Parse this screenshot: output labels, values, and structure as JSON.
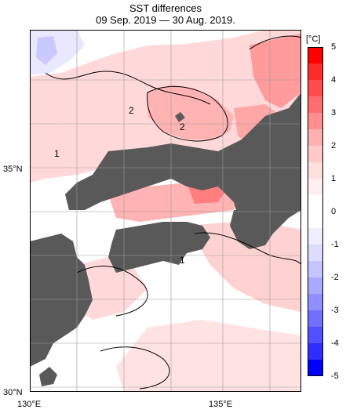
{
  "title": "SST differences",
  "subtitle": "09 Sep. 2019 — 30 Aug. 2019.",
  "axes": {
    "lat_labels": [
      "35°N",
      "30°N"
    ],
    "lon_labels": [
      "130°E",
      "135°E"
    ]
  },
  "colorbar": {
    "unit": "[°C]",
    "ticks": [
      "5",
      "4",
      "3",
      "2",
      "1",
      "0",
      "-1",
      "-2",
      "-3",
      "-4",
      "-5"
    ],
    "colors_warm": [
      "#ff0000",
      "#ff2a2a",
      "#ff4d4d",
      "#ff6e6e",
      "#ff8f8f",
      "#ffb0b0",
      "#ffc9c9",
      "#ffdede",
      "#ffefef",
      "#ffffff"
    ],
    "colors_cold": [
      "#ffffff",
      "#eeeeff",
      "#dcdcff",
      "#c4c4ff",
      "#a9a9ff",
      "#8f8fff",
      "#7070ff",
      "#5050ff",
      "#2e2eff",
      "#0000ff"
    ]
  },
  "contour_labels": [
    "2",
    "2",
    "1",
    "1"
  ],
  "colors": {
    "land": "#595959",
    "warm_light": "#ffd9d9",
    "warm_mid": "#ffb3b3",
    "warm_strong": "#ff8585",
    "cold_light": "#dcdcff",
    "grid": "#9a9a9a"
  }
}
